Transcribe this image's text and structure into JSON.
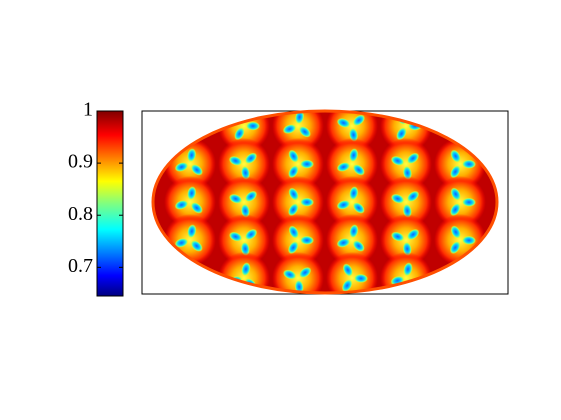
{
  "chart_data": {
    "type": "map",
    "projection": "hammer",
    "colormap": "jet",
    "clim": [
      0.645,
      1
    ],
    "cticks": [
      0.7,
      0.8,
      0.9,
      1
    ]
  }
}
